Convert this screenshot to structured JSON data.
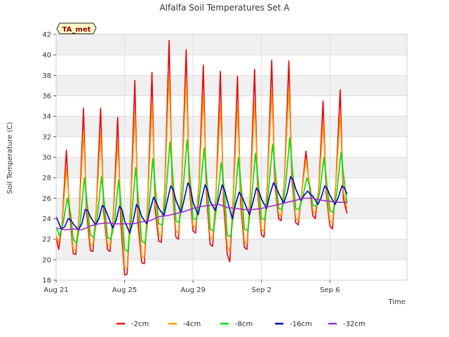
{
  "chart_data": {
    "type": "line",
    "title": "Alfalfa Soil Temperatures Set A",
    "xlabel": "Time",
    "ylabel": "Soil Temperature (C)",
    "ylim": [
      18,
      42
    ],
    "yticks": [
      18,
      20,
      22,
      24,
      26,
      28,
      30,
      32,
      34,
      36,
      38,
      40,
      42
    ],
    "x_range_days": [
      0,
      20.5
    ],
    "xticks": [
      {
        "day": 0,
        "label": "Aug 21"
      },
      {
        "day": 4,
        "label": "Aug 25"
      },
      {
        "day": 8,
        "label": "Aug 29"
      },
      {
        "day": 12,
        "label": "Sep 2"
      },
      {
        "day": 16,
        "label": "Sep 6"
      }
    ],
    "grid": true,
    "legend_position": "bottom",
    "annotation": "TA_met",
    "series": [
      {
        "name": "-2cm",
        "color": "#ee0000",
        "x": [
          0.0,
          0.15,
          0.35,
          0.6,
          0.78,
          1.0,
          1.15,
          1.35,
          1.6,
          1.78,
          2.0,
          2.15,
          2.35,
          2.6,
          2.78,
          3.0,
          3.15,
          3.35,
          3.6,
          3.78,
          4.0,
          4.15,
          4.35,
          4.6,
          4.78,
          5.0,
          5.15,
          5.35,
          5.6,
          5.78,
          6.0,
          6.15,
          6.35,
          6.6,
          6.78,
          7.0,
          7.15,
          7.35,
          7.6,
          7.78,
          8.0,
          8.15,
          8.35,
          8.6,
          8.78,
          9.0,
          9.15,
          9.35,
          9.6,
          9.78,
          10.0,
          10.15,
          10.35,
          10.6,
          10.78,
          11.0,
          11.15,
          11.35,
          11.6,
          11.78,
          12.0,
          12.15,
          12.35,
          12.6,
          12.78,
          13.0,
          13.15,
          13.35,
          13.6,
          13.78,
          14.0,
          14.15,
          14.35,
          14.6,
          14.78,
          15.0,
          15.15,
          15.35,
          15.6,
          15.78,
          16.0,
          16.15,
          16.35,
          16.6,
          16.78,
          17.0
        ],
        "y": [
          22.1,
          21.0,
          23.5,
          30.7,
          24.6,
          20.6,
          20.5,
          24.5,
          34.8,
          24.6,
          20.9,
          20.8,
          25.0,
          34.8,
          24.7,
          21.0,
          20.8,
          24.5,
          33.9,
          23.6,
          18.5,
          18.6,
          25.0,
          37.5,
          23.6,
          19.7,
          19.6,
          25.5,
          38.3,
          25.0,
          21.8,
          21.7,
          27.0,
          41.4,
          27.4,
          22.2,
          22.0,
          28.0,
          40.5,
          27.2,
          22.8,
          22.6,
          27.5,
          39.0,
          26.6,
          21.5,
          21.3,
          26.5,
          38.4,
          25.8,
          20.5,
          19.8,
          26.0,
          37.9,
          25.6,
          21.2,
          21.0,
          26.5,
          38.6,
          26.6,
          22.4,
          22.2,
          27.5,
          39.5,
          27.5,
          24.0,
          23.8,
          28.0,
          39.4,
          27.8,
          23.6,
          23.4,
          26.5,
          30.6,
          27.5,
          24.3,
          24.0,
          27.0,
          35.5,
          26.5,
          23.3,
          23.0,
          27.5,
          36.6,
          26.0,
          24.5
        ]
      },
      {
        "name": "-4cm",
        "color": "#ff9900",
        "x": [
          0.0,
          0.15,
          0.35,
          0.6,
          0.8,
          1.0,
          1.15,
          1.35,
          1.6,
          1.8,
          2.0,
          2.15,
          2.35,
          2.6,
          2.8,
          3.0,
          3.15,
          3.35,
          3.6,
          3.8,
          4.0,
          4.15,
          4.35,
          4.6,
          4.8,
          5.0,
          5.15,
          5.35,
          5.6,
          5.8,
          6.0,
          6.15,
          6.35,
          6.6,
          6.8,
          7.0,
          7.15,
          7.35,
          7.6,
          7.8,
          8.0,
          8.15,
          8.35,
          8.6,
          8.8,
          9.0,
          9.15,
          9.35,
          9.6,
          9.8,
          10.0,
          10.15,
          10.35,
          10.6,
          10.8,
          11.0,
          11.15,
          11.35,
          11.6,
          11.8,
          12.0,
          12.15,
          12.35,
          12.6,
          12.8,
          13.0,
          13.15,
          13.35,
          13.6,
          13.8,
          14.0,
          14.15,
          14.35,
          14.6,
          14.8,
          15.0,
          15.15,
          15.35,
          15.6,
          15.8,
          16.0,
          16.15,
          16.35,
          16.6,
          16.8,
          17.0
        ],
        "y": [
          22.5,
          21.6,
          23.5,
          29.0,
          25.0,
          21.0,
          21.0,
          24.5,
          32.5,
          25.0,
          21.5,
          21.4,
          25.0,
          32.3,
          25.0,
          21.5,
          21.3,
          24.5,
          31.5,
          24.5,
          19.2,
          19.2,
          25.0,
          34.4,
          24.5,
          20.3,
          20.2,
          25.5,
          35.3,
          25.5,
          22.5,
          22.3,
          27.0,
          38.0,
          27.5,
          22.8,
          22.6,
          28.0,
          37.7,
          27.5,
          23.3,
          23.2,
          27.5,
          36.0,
          27.0,
          22.2,
          22.0,
          26.5,
          35.1,
          26.5,
          21.3,
          20.8,
          26.0,
          35.0,
          26.0,
          21.8,
          21.6,
          26.5,
          35.5,
          26.8,
          22.9,
          22.8,
          27.5,
          36.5,
          27.8,
          24.5,
          24.2,
          28.0,
          36.8,
          28.0,
          24.0,
          23.8,
          26.5,
          29.8,
          27.5,
          24.8,
          24.5,
          27.0,
          33.4,
          26.7,
          23.8,
          23.6,
          27.5,
          34.2,
          26.5,
          25.0
        ]
      },
      {
        "name": "-8cm",
        "color": "#00dd00",
        "x": [
          0.0,
          0.2,
          0.4,
          0.65,
          0.85,
          1.0,
          1.2,
          1.4,
          1.65,
          1.85,
          2.0,
          2.2,
          2.4,
          2.65,
          2.85,
          3.0,
          3.2,
          3.4,
          3.65,
          3.85,
          4.0,
          4.2,
          4.4,
          4.65,
          4.85,
          5.0,
          5.2,
          5.4,
          5.65,
          5.85,
          6.0,
          6.2,
          6.4,
          6.65,
          6.85,
          7.0,
          7.2,
          7.4,
          7.65,
          7.85,
          8.0,
          8.2,
          8.4,
          8.65,
          8.85,
          9.0,
          9.2,
          9.4,
          9.65,
          9.85,
          10.0,
          10.2,
          10.4,
          10.65,
          10.85,
          11.0,
          11.2,
          11.4,
          11.65,
          11.85,
          12.0,
          12.2,
          12.4,
          12.65,
          12.85,
          13.0,
          13.2,
          13.4,
          13.65,
          13.85,
          14.0,
          14.2,
          14.4,
          14.65,
          14.85,
          15.0,
          15.2,
          15.4,
          15.65,
          15.85,
          16.0,
          16.2,
          16.4,
          16.65,
          16.85,
          17.0
        ],
        "y": [
          23.2,
          22.3,
          23.5,
          26.0,
          24.5,
          22.0,
          21.6,
          23.5,
          28.0,
          25.0,
          22.4,
          22.2,
          24.0,
          28.1,
          25.0,
          22.2,
          22.0,
          23.5,
          27.8,
          24.5,
          21.0,
          20.8,
          24.0,
          29.0,
          25.0,
          21.8,
          21.6,
          24.5,
          29.9,
          26.0,
          23.5,
          23.4,
          26.0,
          31.5,
          27.5,
          23.8,
          23.6,
          26.5,
          31.7,
          27.5,
          24.0,
          23.9,
          26.5,
          30.9,
          27.0,
          23.0,
          22.8,
          25.5,
          29.5,
          26.5,
          22.4,
          22.2,
          25.0,
          30.0,
          26.5,
          23.0,
          22.8,
          25.5,
          30.4,
          27.0,
          24.0,
          23.9,
          26.5,
          31.3,
          28.0,
          25.0,
          24.9,
          27.0,
          31.9,
          28.0,
          25.0,
          24.9,
          26.0,
          28.0,
          27.0,
          25.3,
          25.2,
          26.5,
          30.0,
          27.0,
          24.8,
          24.6,
          26.5,
          30.5,
          27.5,
          25.5
        ]
      },
      {
        "name": "-16cm",
        "color": "#0000bb",
        "x": [
          0.0,
          0.3,
          0.5,
          0.7,
          0.85,
          1.0,
          1.3,
          1.5,
          1.7,
          1.85,
          2.0,
          2.3,
          2.5,
          2.7,
          2.85,
          3.0,
          3.3,
          3.5,
          3.7,
          3.85,
          4.0,
          4.3,
          4.5,
          4.7,
          4.85,
          5.0,
          5.3,
          5.5,
          5.7,
          5.85,
          6.0,
          6.3,
          6.5,
          6.7,
          6.85,
          7.0,
          7.3,
          7.5,
          7.7,
          7.85,
          8.0,
          8.3,
          8.5,
          8.7,
          8.85,
          9.0,
          9.3,
          9.5,
          9.7,
          9.85,
          10.0,
          10.3,
          10.5,
          10.7,
          10.85,
          11.0,
          11.3,
          11.5,
          11.7,
          11.85,
          12.0,
          12.3,
          12.5,
          12.7,
          12.85,
          13.0,
          13.3,
          13.5,
          13.7,
          13.85,
          14.0,
          14.3,
          14.5,
          14.7,
          14.85,
          15.0,
          15.3,
          15.5,
          15.7,
          15.85,
          16.0,
          16.3,
          16.5,
          16.7,
          16.85,
          17.0
        ],
        "y": [
          24.2,
          23.0,
          23.2,
          24.0,
          23.9,
          23.5,
          22.9,
          23.5,
          24.9,
          24.8,
          24.2,
          23.4,
          24.0,
          25.3,
          25.0,
          24.4,
          23.1,
          23.8,
          25.2,
          24.9,
          23.8,
          22.6,
          23.8,
          25.4,
          25.0,
          24.2,
          23.5,
          24.9,
          26.1,
          25.6,
          25.0,
          24.3,
          25.8,
          27.2,
          26.8,
          25.8,
          24.6,
          26.0,
          27.5,
          27.0,
          25.6,
          24.4,
          25.9,
          27.3,
          26.8,
          25.7,
          24.8,
          25.9,
          27.3,
          26.8,
          25.8,
          24.0,
          25.5,
          26.6,
          26.2,
          25.6,
          24.4,
          25.6,
          27.0,
          26.7,
          25.9,
          25.0,
          26.4,
          27.5,
          27.1,
          26.5,
          25.5,
          26.5,
          28.1,
          27.8,
          26.9,
          25.8,
          26.3,
          26.7,
          26.4,
          26.2,
          25.4,
          26.1,
          27.2,
          26.9,
          26.3,
          25.4,
          26.1,
          27.2,
          27.0,
          26.4
        ]
      },
      {
        "name": "-32cm",
        "color": "#9933cc",
        "x": [
          0.0,
          0.5,
          1.0,
          1.5,
          2.0,
          2.5,
          3.0,
          3.5,
          4.0,
          4.5,
          5.0,
          5.5,
          6.0,
          6.5,
          7.0,
          7.5,
          8.0,
          8.5,
          9.0,
          9.5,
          10.0,
          10.5,
          11.0,
          11.5,
          12.0,
          12.5,
          13.0,
          13.5,
          14.0,
          14.5,
          15.0,
          15.5,
          16.0,
          16.5,
          17.0
        ],
        "y": [
          23.1,
          22.9,
          23.0,
          22.9,
          23.3,
          23.5,
          23.6,
          23.5,
          23.5,
          23.5,
          23.7,
          23.8,
          24.2,
          24.3,
          24.5,
          24.7,
          25.0,
          25.2,
          25.3,
          25.4,
          25.1,
          25.0,
          24.9,
          24.9,
          25.0,
          25.2,
          25.4,
          25.6,
          25.8,
          26.0,
          26.0,
          25.8,
          25.7,
          25.6,
          25.6
        ]
      }
    ]
  }
}
